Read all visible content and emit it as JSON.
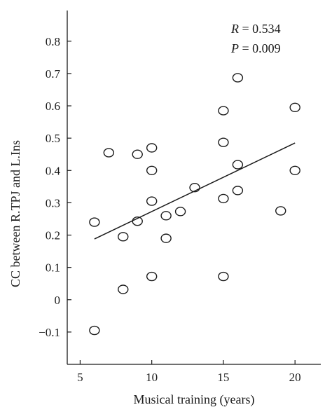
{
  "chart_data": {
    "type": "scatter",
    "title": "",
    "xlabel": "Musical training (years)",
    "ylabel": "CC between R.TPJ and L.Ins",
    "xlim": [
      4.1,
      21.8
    ],
    "ylim": [
      -0.2,
      0.895
    ],
    "xticks": [
      5,
      10,
      15,
      20
    ],
    "yticks": [
      -0.1,
      0,
      0.1,
      0.2,
      0.3,
      0.4,
      0.5,
      0.6,
      0.7,
      0.8
    ],
    "xtick_labels": [
      "5",
      "10",
      "15",
      "20"
    ],
    "ytick_labels": [
      "−0.1",
      "0",
      "0.1",
      "0.2",
      "0.3",
      "0.4",
      "0.5",
      "0.6",
      "0.7",
      "0.8"
    ],
    "grid": false,
    "points": [
      {
        "x": 6,
        "y": -0.095
      },
      {
        "x": 6,
        "y": 0.24
      },
      {
        "x": 7,
        "y": 0.455
      },
      {
        "x": 8,
        "y": 0.195
      },
      {
        "x": 8,
        "y": 0.032
      },
      {
        "x": 9,
        "y": 0.45
      },
      {
        "x": 9,
        "y": 0.243
      },
      {
        "x": 10,
        "y": 0.47
      },
      {
        "x": 10,
        "y": 0.4
      },
      {
        "x": 10,
        "y": 0.305
      },
      {
        "x": 10,
        "y": 0.072
      },
      {
        "x": 11,
        "y": 0.26
      },
      {
        "x": 11,
        "y": 0.19
      },
      {
        "x": 12,
        "y": 0.273
      },
      {
        "x": 13,
        "y": 0.347
      },
      {
        "x": 15,
        "y": 0.585
      },
      {
        "x": 15,
        "y": 0.487
      },
      {
        "x": 15,
        "y": 0.313
      },
      {
        "x": 15,
        "y": 0.072
      },
      {
        "x": 16,
        "y": 0.687
      },
      {
        "x": 16,
        "y": 0.418
      },
      {
        "x": 16,
        "y": 0.338
      },
      {
        "x": 19,
        "y": 0.275
      },
      {
        "x": 20,
        "y": 0.595
      },
      {
        "x": 20,
        "y": 0.4
      }
    ],
    "fit_line": {
      "x": [
        6,
        20
      ],
      "y": [
        0.188,
        0.485
      ]
    },
    "annotations": {
      "r_var": "R",
      "r_value": " = 0.534",
      "p_var": "P",
      "p_value": " = 0.009"
    }
  }
}
